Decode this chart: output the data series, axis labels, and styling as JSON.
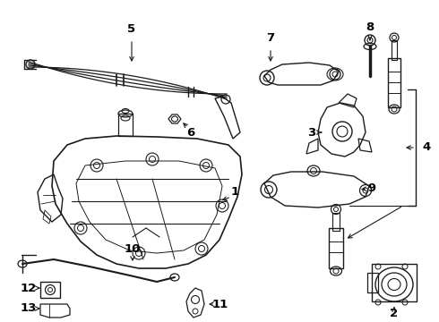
{
  "bg_color": "#ffffff",
  "line_color": "#1a1a1a",
  "text_color": "#000000",
  "fig_width": 4.9,
  "fig_height": 3.6,
  "dpi": 100
}
